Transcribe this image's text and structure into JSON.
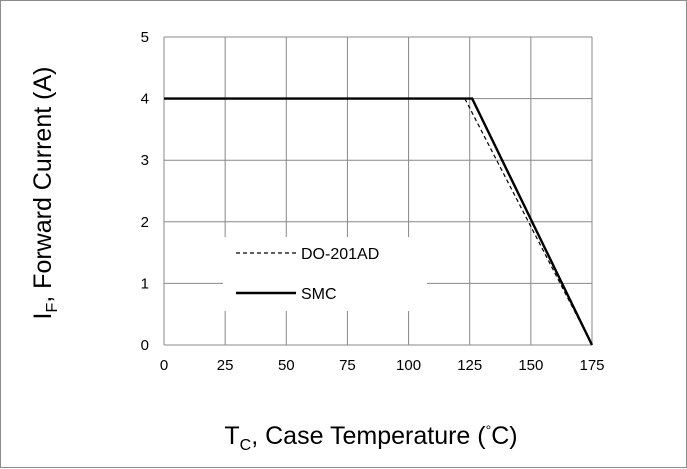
{
  "chart_data": {
    "type": "line",
    "title": "",
    "xlabel": {
      "main": "T",
      "sub": "C",
      "rest": ", Case Temperature  (",
      "deg": "°",
      "end": "C)"
    },
    "ylabel": {
      "main": "I",
      "sub": "F",
      "rest": ", Forward Current (A)"
    },
    "xlim": [
      0,
      175
    ],
    "ylim": [
      0,
      5
    ],
    "x_ticks": [
      0,
      25,
      50,
      75,
      100,
      125,
      150,
      175
    ],
    "y_ticks": [
      0,
      1,
      2,
      3,
      4,
      5
    ],
    "grid": true,
    "legend_position": "center-left",
    "series": [
      {
        "name": "DO-201AD",
        "style": "dashed",
        "color": "#000000",
        "points": [
          [
            0,
            4
          ],
          [
            123,
            4
          ],
          [
            175,
            0
          ]
        ]
      },
      {
        "name": "SMC",
        "style": "solid",
        "color": "#000000",
        "points": [
          [
            0,
            4
          ],
          [
            126,
            4
          ],
          [
            175,
            0
          ]
        ]
      }
    ]
  }
}
